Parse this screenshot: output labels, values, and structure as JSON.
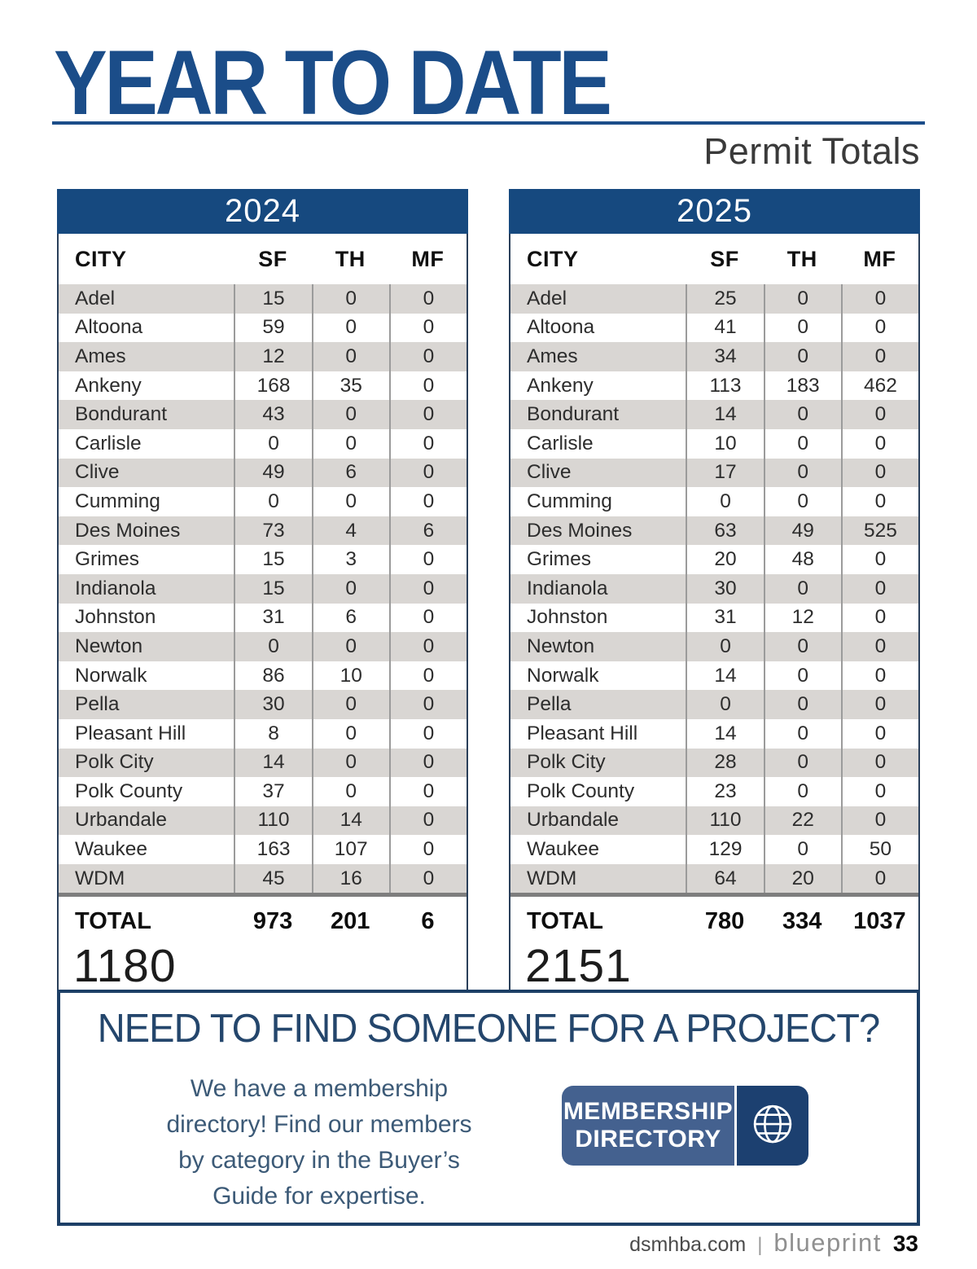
{
  "page": {
    "title": "YEAR TO DATE",
    "subtitle": "Permit Totals"
  },
  "columns": {
    "city": "CITY",
    "sf": "SF",
    "th": "TH",
    "mf": "MF"
  },
  "tables": [
    {
      "year": "2024",
      "rows": [
        {
          "city": "Adel",
          "sf": "15",
          "th": "0",
          "mf": "0"
        },
        {
          "city": "Altoona",
          "sf": "59",
          "th": "0",
          "mf": "0"
        },
        {
          "city": "Ames",
          "sf": "12",
          "th": "0",
          "mf": "0"
        },
        {
          "city": "Ankeny",
          "sf": "168",
          "th": "35",
          "mf": "0"
        },
        {
          "city": "Bondurant",
          "sf": "43",
          "th": "0",
          "mf": "0"
        },
        {
          "city": "Carlisle",
          "sf": "0",
          "th": "0",
          "mf": "0"
        },
        {
          "city": "Clive",
          "sf": "49",
          "th": "6",
          "mf": "0"
        },
        {
          "city": "Cumming",
          "sf": "0",
          "th": "0",
          "mf": "0"
        },
        {
          "city": "Des Moines",
          "sf": "73",
          "th": "4",
          "mf": "6"
        },
        {
          "city": "Grimes",
          "sf": "15",
          "th": "3",
          "mf": "0"
        },
        {
          "city": "Indianola",
          "sf": "15",
          "th": "0",
          "mf": "0"
        },
        {
          "city": "Johnston",
          "sf": "31",
          "th": "6",
          "mf": "0"
        },
        {
          "city": "Newton",
          "sf": "0",
          "th": "0",
          "mf": "0"
        },
        {
          "city": "Norwalk",
          "sf": "86",
          "th": "10",
          "mf": "0"
        },
        {
          "city": "Pella",
          "sf": "30",
          "th": "0",
          "mf": "0"
        },
        {
          "city": "Pleasant Hill",
          "sf": "8",
          "th": "0",
          "mf": "0"
        },
        {
          "city": "Polk City",
          "sf": "14",
          "th": "0",
          "mf": "0"
        },
        {
          "city": "Polk County",
          "sf": "37",
          "th": "0",
          "mf": "0"
        },
        {
          "city": "Urbandale",
          "sf": "110",
          "th": "14",
          "mf": "0"
        },
        {
          "city": "Waukee",
          "sf": "163",
          "th": "107",
          "mf": "0"
        },
        {
          "city": "WDM",
          "sf": "45",
          "th": "16",
          "mf": "0"
        }
      ],
      "total": {
        "label": "TOTAL",
        "sf": "973",
        "th": "201",
        "mf": "6"
      },
      "grand_total": "1180"
    },
    {
      "year": "2025",
      "rows": [
        {
          "city": "Adel",
          "sf": "25",
          "th": "0",
          "mf": "0"
        },
        {
          "city": "Altoona",
          "sf": "41",
          "th": "0",
          "mf": "0"
        },
        {
          "city": "Ames",
          "sf": "34",
          "th": "0",
          "mf": "0"
        },
        {
          "city": "Ankeny",
          "sf": "113",
          "th": "183",
          "mf": "462"
        },
        {
          "city": "Bondurant",
          "sf": "14",
          "th": "0",
          "mf": "0"
        },
        {
          "city": "Carlisle",
          "sf": "10",
          "th": "0",
          "mf": "0"
        },
        {
          "city": "Clive",
          "sf": "17",
          "th": "0",
          "mf": "0"
        },
        {
          "city": "Cumming",
          "sf": "0",
          "th": "0",
          "mf": "0"
        },
        {
          "city": "Des Moines",
          "sf": "63",
          "th": "49",
          "mf": "525"
        },
        {
          "city": "Grimes",
          "sf": "20",
          "th": "48",
          "mf": "0"
        },
        {
          "city": "Indianola",
          "sf": "30",
          "th": "0",
          "mf": "0"
        },
        {
          "city": "Johnston",
          "sf": "31",
          "th": "12",
          "mf": "0"
        },
        {
          "city": "Newton",
          "sf": "0",
          "th": "0",
          "mf": "0"
        },
        {
          "city": "Norwalk",
          "sf": "14",
          "th": "0",
          "mf": "0"
        },
        {
          "city": "Pella",
          "sf": "0",
          "th": "0",
          "mf": "0"
        },
        {
          "city": "Pleasant Hill",
          "sf": "14",
          "th": "0",
          "mf": "0"
        },
        {
          "city": "Polk City",
          "sf": "28",
          "th": "0",
          "mf": "0"
        },
        {
          "city": "Polk County",
          "sf": "23",
          "th": "0",
          "mf": "0"
        },
        {
          "city": "Urbandale",
          "sf": "110",
          "th": "22",
          "mf": "0"
        },
        {
          "city": "Waukee",
          "sf": "129",
          "th": "0",
          "mf": "50"
        },
        {
          "city": "WDM",
          "sf": "64",
          "th": "20",
          "mf": "0"
        }
      ],
      "total": {
        "label": "TOTAL",
        "sf": "780",
        "th": "334",
        "mf": "1037"
      },
      "grand_total": "2151"
    }
  ],
  "promo": {
    "heading": "NEED TO FIND SOMEONE FOR A PROJECT?",
    "body_lines": [
      "We have a membership",
      "directory! Find our members",
      "by category in the Buyer’s",
      "Guide for expertise."
    ],
    "button": {
      "line1": "MEMBERSHIP",
      "line2": "DIRECTORY",
      "icon": "globe-icon"
    }
  },
  "footer": {
    "website": "dsmhba.com",
    "separator": "|",
    "brand": "blueprint",
    "page_number": "33"
  },
  "colors": {
    "navy_banner": "#16497F",
    "title_navy": "#1B4D89",
    "row_stripe": "#D9D6D3",
    "column_divider": "#9B9B9B",
    "heavy_divider": "#7E7E7E",
    "promo_border": "#1D3F66",
    "promo_heading": "#24466C",
    "promo_text": "#3C5A77",
    "button_left_blue": "#44618F",
    "button_right_navy": "#1C4070"
  }
}
